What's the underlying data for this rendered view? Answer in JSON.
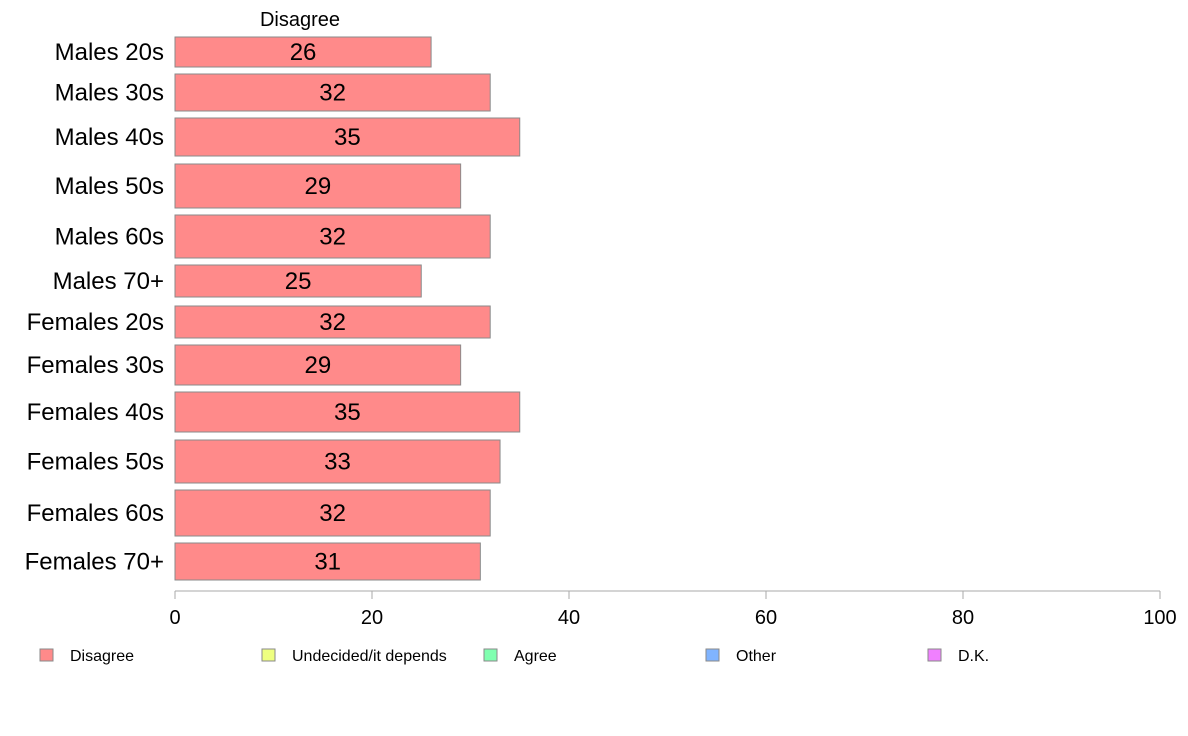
{
  "chart_data": {
    "type": "bar",
    "orientation": "horizontal",
    "stacked": true,
    "categories": [
      "Males 20s",
      "Males 30s",
      "Males 40s",
      "Males 50s",
      "Males 60s",
      "Males 70+",
      "Females 20s",
      "Females 30s",
      "Females 40s",
      "Females 50s",
      "Females 60s",
      "Females 70+"
    ],
    "series": [
      {
        "name": "Disagree",
        "color": "#ff8a8a",
        "values": [
          26,
          32,
          35,
          29,
          32,
          25,
          32,
          29,
          35,
          33,
          32,
          31
        ]
      }
    ],
    "xlim": [
      0,
      100
    ],
    "xticks": [
      0,
      20,
      40,
      60,
      80,
      100
    ],
    "grid": false,
    "legend_position": "bottom",
    "legend": [
      {
        "label": "Disagree",
        "color": "#ff8a8a"
      },
      {
        "label": "Undecided/it depends",
        "color": "#eeff80"
      },
      {
        "label": "Agree",
        "color": "#80ffb0"
      },
      {
        "label": "Other",
        "color": "#80b4ff"
      },
      {
        "label": "D.K.",
        "color": "#f080ff"
      }
    ]
  }
}
